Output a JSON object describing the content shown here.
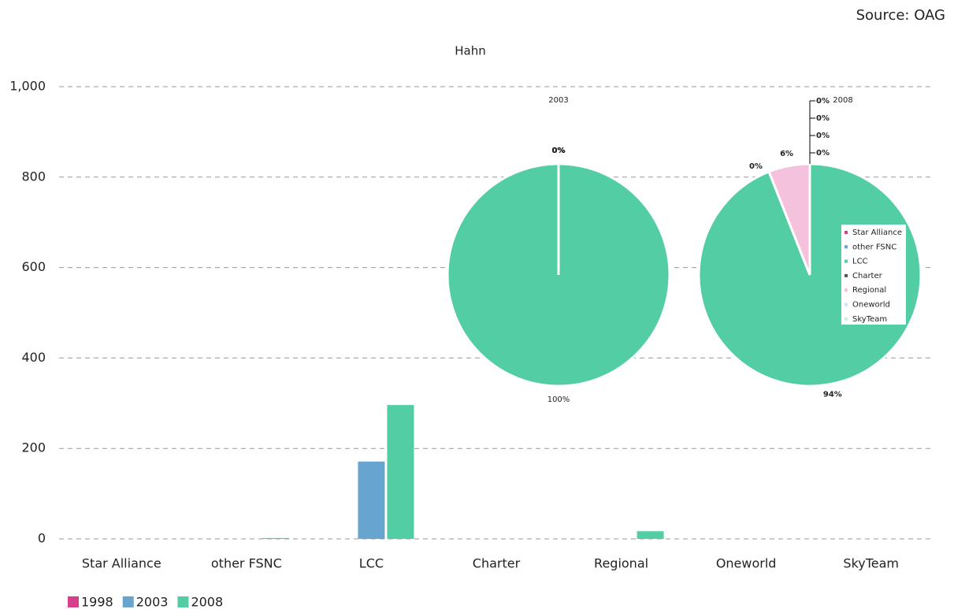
{
  "source": "Source: OAG",
  "chart_data": [
    {
      "type": "bar",
      "title": "Hahn",
      "categories": [
        "Star Alliance",
        "other FSNC",
        "LCC",
        "Charter",
        "Regional",
        "Oneworld",
        "SkyTeam"
      ],
      "series": [
        {
          "name": "1998",
          "color": "#d63f8a",
          "values": [
            0,
            0,
            0,
            0,
            0,
            0,
            0
          ]
        },
        {
          "name": "2003",
          "color": "#67a5d0",
          "values": [
            0,
            0,
            171,
            0,
            0,
            0,
            0
          ]
        },
        {
          "name": "2008",
          "color": "#52cda4",
          "values": [
            0,
            2,
            296,
            0,
            17,
            0,
            0
          ]
        }
      ],
      "ylim": [
        0,
        1000
      ],
      "yticks": [
        0,
        200,
        400,
        600,
        800,
        {
          "value": 1000,
          "label": "1,000"
        }
      ],
      "grid": true,
      "legend": "bottom-left"
    },
    {
      "type": "pie",
      "title": "2003",
      "categories": [
        "Star Alliance",
        "other FSNC",
        "LCC",
        "Charter",
        "Regional",
        "Oneworld",
        "SkyTeam"
      ],
      "colors": [
        "#d63f8a",
        "#67a5d0",
        "#52cda4",
        "#555555",
        "#f4c2dc",
        "#c8e6f5",
        "#c8f0e0"
      ],
      "values": [
        0,
        0,
        100,
        0,
        0,
        0,
        0
      ],
      "value_labels": [
        "0%",
        "0%",
        "100%",
        "0%",
        "0%",
        "0%",
        "0%"
      ]
    },
    {
      "type": "pie",
      "title": "2008",
      "categories": [
        "Star Alliance",
        "other FSNC",
        "LCC",
        "Charter",
        "Regional",
        "Oneworld",
        "SkyTeam"
      ],
      "colors": [
        "#d63f8a",
        "#67a5d0",
        "#52cda4",
        "#555555",
        "#f4c2dc",
        "#c8e6f5",
        "#c8f0e0"
      ],
      "values": [
        0,
        0,
        94,
        0,
        6,
        0,
        0
      ],
      "value_labels": [
        "0%",
        "0%",
        "94%",
        "0%",
        "6%",
        "0%",
        "0%"
      ],
      "legend": "right"
    }
  ]
}
